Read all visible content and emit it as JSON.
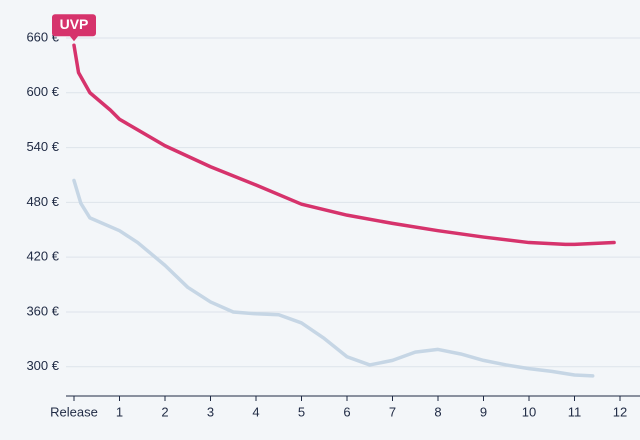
{
  "chart_data": {
    "type": "line",
    "annotation": "UVP",
    "xlim": [
      0,
      12
    ],
    "xticks": [
      {
        "value": 0,
        "label": "Release"
      },
      1,
      2,
      3,
      4,
      5,
      6,
      7,
      8,
      9,
      10,
      11,
      12
    ],
    "ylim": [
      268,
      672
    ],
    "yticks": [
      {
        "value": 300,
        "label": "300 €"
      },
      {
        "value": 360,
        "label": "360 €"
      },
      {
        "value": 420,
        "label": "420 €"
      },
      {
        "value": 480,
        "label": "480 €"
      },
      {
        "value": 540,
        "label": "540 €"
      },
      {
        "value": 600,
        "label": "600 €"
      },
      {
        "value": 660,
        "label": "660 €"
      }
    ],
    "grid": true,
    "series": [
      {
        "color": "#d6336c",
        "x": [
          0,
          0.1,
          0.35,
          0.8,
          1,
          2,
          3,
          4,
          5,
          6,
          7,
          8,
          9,
          10,
          10.8,
          11,
          11.87
        ],
        "values": [
          652,
          622,
          600,
          581,
          571,
          542,
          519,
          499,
          478,
          466,
          457,
          449,
          442,
          436,
          434,
          434,
          436
        ]
      },
      {
        "color": "#c6d6e5",
        "x": [
          0,
          0.15,
          0.35,
          1,
          1.4,
          2,
          2.5,
          3,
          3.5,
          4,
          4.5,
          5,
          5.5,
          6,
          6.5,
          7,
          7.5,
          8,
          8.5,
          9,
          9.5,
          10,
          10.5,
          11,
          11.4
        ],
        "values": [
          504,
          479,
          463,
          449,
          436,
          411,
          387,
          371,
          360,
          358,
          357,
          348,
          331,
          311,
          302,
          307,
          316,
          319,
          314,
          307,
          302,
          298,
          295,
          291,
          290
        ]
      }
    ]
  }
}
